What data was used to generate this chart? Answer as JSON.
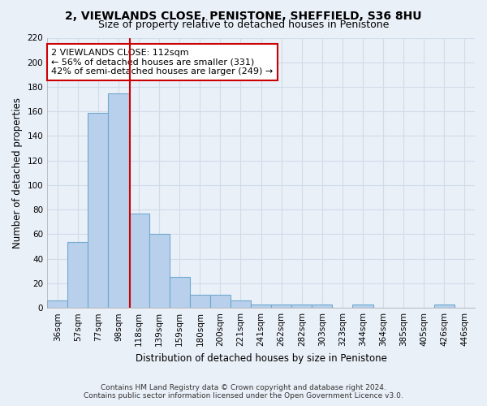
{
  "title": "2, VIEWLANDS CLOSE, PENISTONE, SHEFFIELD, S36 8HU",
  "subtitle": "Size of property relative to detached houses in Penistone",
  "xlabel": "Distribution of detached houses by size in Penistone",
  "ylabel": "Number of detached properties",
  "categories": [
    "36sqm",
    "57sqm",
    "77sqm",
    "98sqm",
    "118sqm",
    "139sqm",
    "159sqm",
    "180sqm",
    "200sqm",
    "221sqm",
    "241sqm",
    "262sqm",
    "282sqm",
    "303sqm",
    "323sqm",
    "344sqm",
    "364sqm",
    "385sqm",
    "405sqm",
    "426sqm",
    "446sqm"
  ],
  "values": [
    6,
    54,
    159,
    175,
    77,
    60,
    25,
    11,
    11,
    6,
    3,
    3,
    3,
    3,
    0,
    3,
    0,
    0,
    0,
    3,
    0
  ],
  "bar_color": "#b8d0eb",
  "bar_edge_color": "#6fa8d0",
  "vline_color": "#cc0000",
  "vline_pos": 3.55,
  "annotation_line1": "2 VIEWLANDS CLOSE: 112sqm",
  "annotation_line2": "← 56% of detached houses are smaller (331)",
  "annotation_line3": "42% of semi-detached houses are larger (249) →",
  "annotation_box_color": "#ffffff",
  "annotation_box_edge_color": "#cc0000",
  "ylim": [
    0,
    220
  ],
  "yticks": [
    0,
    20,
    40,
    60,
    80,
    100,
    120,
    140,
    160,
    180,
    200,
    220
  ],
  "footer_line1": "Contains HM Land Registry data © Crown copyright and database right 2024.",
  "footer_line2": "Contains public sector information licensed under the Open Government Licence v3.0.",
  "bg_color": "#eaf0f8",
  "grid_color": "#d0dce8",
  "title_fontsize": 10,
  "subtitle_fontsize": 9,
  "axis_label_fontsize": 8.5,
  "tick_fontsize": 7.5,
  "annotation_fontsize": 8,
  "footer_fontsize": 6.5
}
